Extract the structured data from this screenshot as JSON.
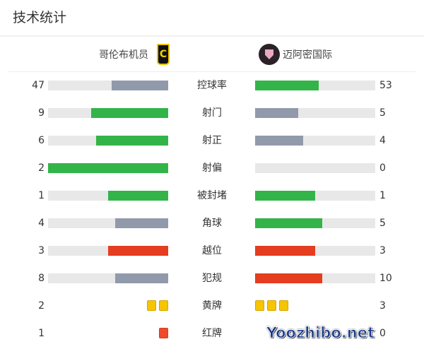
{
  "title": "技术统计",
  "home": {
    "name": "哥伦布机员",
    "logo": "C"
  },
  "away": {
    "name": "迈阿密国际"
  },
  "colors": {
    "green": "#33b449",
    "gray": "#919aab",
    "red": "#e43d1f",
    "track": "#e8e8e8",
    "yellow": "#f7c400",
    "redcard": "#f04a2a"
  },
  "stats": [
    {
      "label": "控球率",
      "home": "47",
      "away": "53",
      "home_pct": 47,
      "away_pct": 53,
      "home_color": "gray",
      "away_color": "green"
    },
    {
      "label": "射门",
      "home": "9",
      "away": "5",
      "home_pct": 64,
      "away_pct": 36,
      "home_color": "green",
      "away_color": "gray"
    },
    {
      "label": "射正",
      "home": "6",
      "away": "4",
      "home_pct": 60,
      "away_pct": 40,
      "home_color": "green",
      "away_color": "gray"
    },
    {
      "label": "射偏",
      "home": "2",
      "away": "0",
      "home_pct": 100,
      "away_pct": 0,
      "home_color": "green",
      "away_color": "gray"
    },
    {
      "label": "被封堵",
      "home": "1",
      "away": "1",
      "home_pct": 50,
      "away_pct": 50,
      "home_color": "green",
      "away_color": "green"
    },
    {
      "label": "角球",
      "home": "4",
      "away": "5",
      "home_pct": 44,
      "away_pct": 56,
      "home_color": "gray",
      "away_color": "green"
    },
    {
      "label": "越位",
      "home": "3",
      "away": "3",
      "home_pct": 50,
      "away_pct": 50,
      "home_color": "red",
      "away_color": "red"
    },
    {
      "label": "犯规",
      "home": "8",
      "away": "10",
      "home_pct": 44,
      "away_pct": 56,
      "home_color": "gray",
      "away_color": "red"
    }
  ],
  "cards": [
    {
      "label": "黄牌",
      "home": "2",
      "away": "3",
      "type": "yellow"
    },
    {
      "label": "红牌",
      "home": "1",
      "away": "0",
      "type": "redcard"
    }
  ],
  "watermark": "Yoozhibo.net"
}
